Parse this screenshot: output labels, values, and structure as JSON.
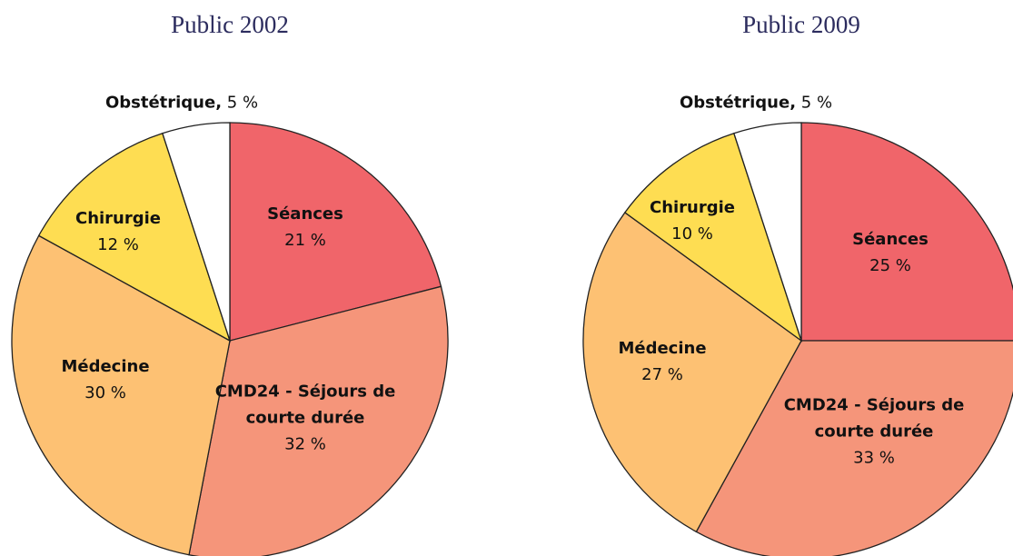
{
  "chart_data": [
    {
      "type": "pie",
      "title": "Public 2002",
      "categories": [
        "Séances",
        "CMD24 - Séjours de courte durée",
        "Médecine",
        "Chirurgie",
        "Obstétrique,"
      ],
      "values": [
        21,
        32,
        30,
        12,
        5
      ],
      "value_labels": [
        "21 %",
        "32 %",
        "30 %",
        "12 %",
        "5 %"
      ],
      "colors": [
        "#f0656a",
        "#f5957a",
        "#fdc173",
        "#fedd52",
        "#ffffff"
      ]
    },
    {
      "type": "pie",
      "title": "Public 2009",
      "categories": [
        "Séances",
        "CMD24 - Séjours de courte durée",
        "Médecine",
        "Chirurgie",
        "Obstétrique,"
      ],
      "values": [
        25,
        33,
        27,
        10,
        5
      ],
      "value_labels": [
        "25 %",
        "33 %",
        "27 %",
        "10 %",
        "5 %"
      ],
      "colors": [
        "#f0656a",
        "#f5957a",
        "#fdc173",
        "#fedd52",
        "#ffffff"
      ]
    }
  ]
}
